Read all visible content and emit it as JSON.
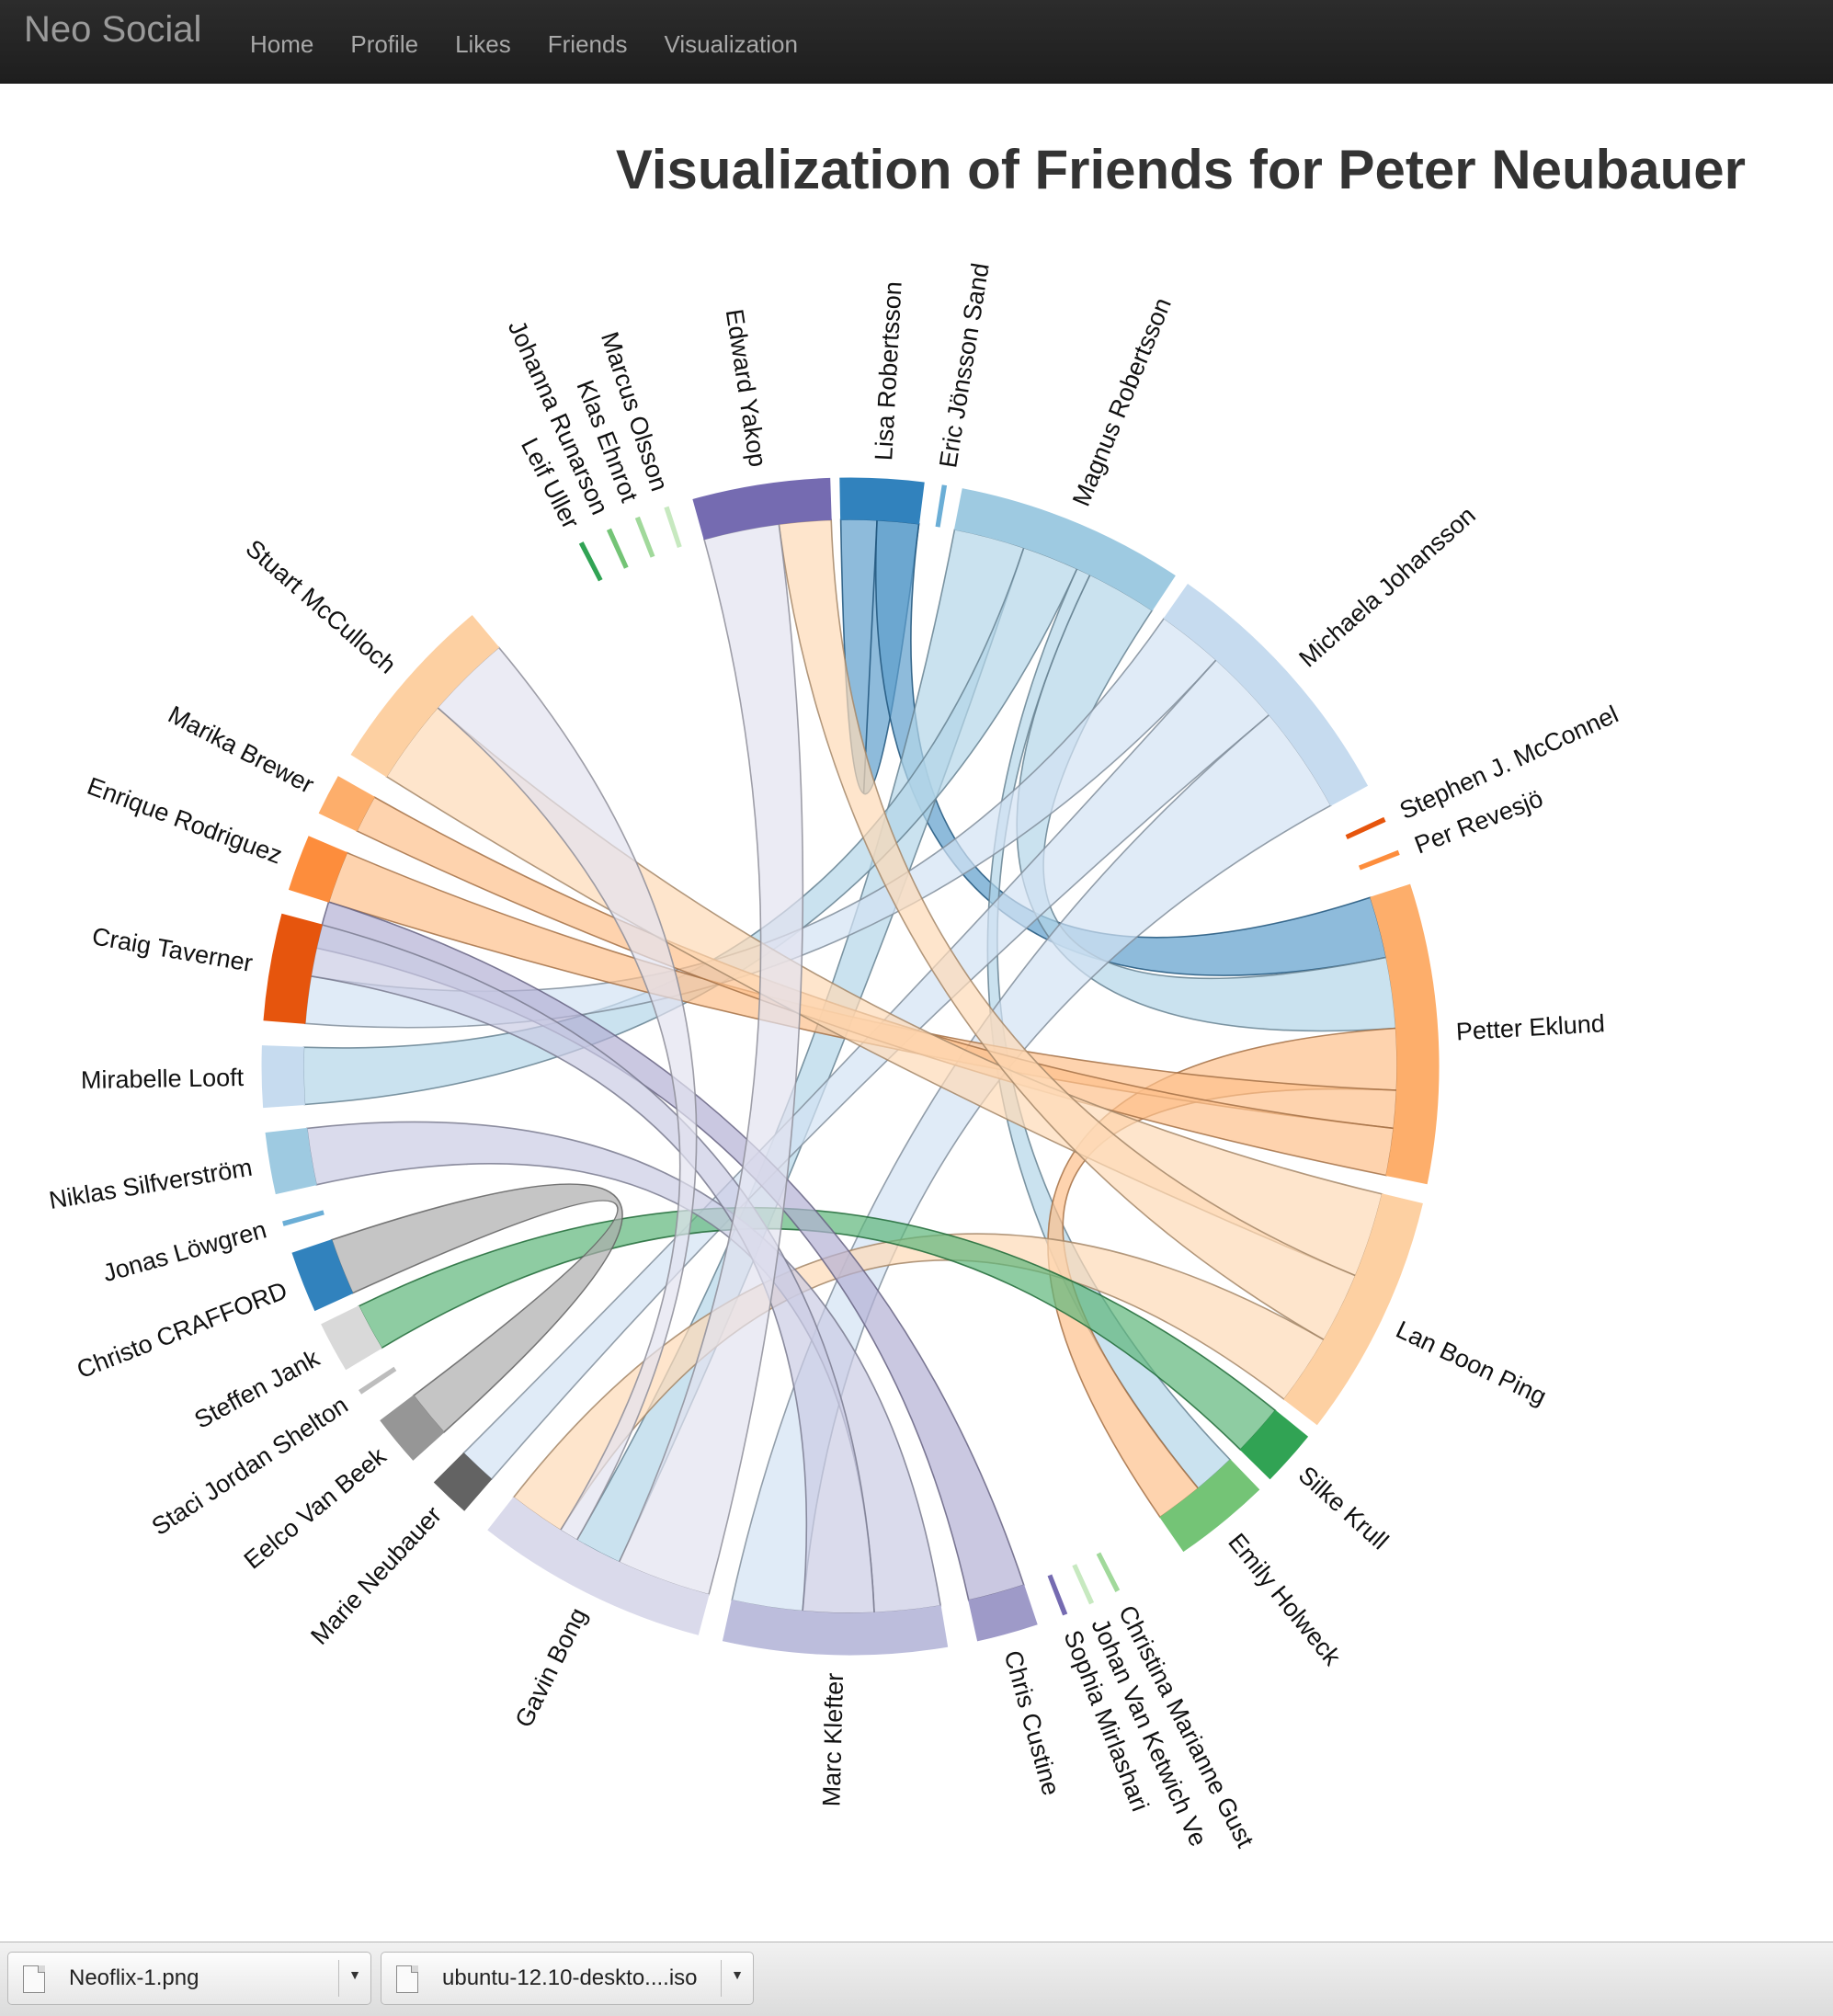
{
  "navbar": {
    "brand": "Neo Social",
    "items": [
      "Home",
      "Profile",
      "Likes",
      "Friends",
      "Visualization"
    ]
  },
  "title": "Visualization of Friends for Peter Neubauer",
  "chart_data": {
    "type": "chord",
    "groups": [
      {
        "name": "Lisa Robertsson",
        "start": -1.0,
        "end": 7.2,
        "color": "#3182bd"
      },
      {
        "name": "Eric Jönsson Sand",
        "start": 9.0,
        "end": 9.4,
        "color": "#6baed6"
      },
      {
        "name": "Magnus Robertsson",
        "start": 11.0,
        "end": 33.5,
        "color": "#9ecae1"
      },
      {
        "name": "Michaela Johansson",
        "start": 35.0,
        "end": 61.5,
        "color": "#c6dbef"
      },
      {
        "name": "Stephen J. McConnel",
        "start": 65.0,
        "end": 65.4,
        "color": "#e6550d"
      },
      {
        "name": "Per Revesjö",
        "start": 68.5,
        "end": 68.9,
        "color": "#fd8d3c"
      },
      {
        "name": "Petter Eklund",
        "start": 72.0,
        "end": 101.5,
        "color": "#fdae6b"
      },
      {
        "name": "Lan Boon Ping",
        "start": 103.5,
        "end": 127.5,
        "color": "#fdd0a2"
      },
      {
        "name": "Silke Krull",
        "start": 129.0,
        "end": 134.5,
        "color": "#31a354"
      },
      {
        "name": "Emily Holweck",
        "start": 136.0,
        "end": 145.5,
        "color": "#74c476"
      },
      {
        "name": "Christina Marianne Gust",
        "start": 152.8,
        "end": 153.2,
        "color": "#a1d99b"
      },
      {
        "name": "Johan Van Ketwich Ve",
        "start": 155.6,
        "end": 156.0,
        "color": "#c7e9c0"
      },
      {
        "name": "Sophia Mirlashari",
        "start": 158.4,
        "end": 158.8,
        "color": "#756bb1"
      },
      {
        "name": "Chris Custine",
        "start": 161.5,
        "end": 167.5,
        "color": "#9e9ac8"
      },
      {
        "name": "Marc Klefter",
        "start": 170.5,
        "end": 192.5,
        "color": "#bcbddc"
      },
      {
        "name": "Gavin Bong",
        "start": 195.0,
        "end": 218.0,
        "color": "#dadaeb"
      },
      {
        "name": "Marie Neubauer",
        "start": 221.0,
        "end": 225.0,
        "color": "#636363"
      },
      {
        "name": "Eelco Van Beek",
        "start": 228.0,
        "end": 233.0,
        "color": "#969696"
      },
      {
        "name": "Staci Jordan Shelton",
        "start": 236.2,
        "end": 236.6,
        "color": "#bdbdbd"
      },
      {
        "name": "Steffen Jank",
        "start": 239.0,
        "end": 244.0,
        "color": "#d9d9d9"
      },
      {
        "name": "Christo CRAFFORD",
        "start": 245.5,
        "end": 251.5,
        "color": "#3182bd"
      },
      {
        "name": "Jonas Löwgren",
        "start": 254.3,
        "end": 254.7,
        "color": "#6baed6"
      },
      {
        "name": "Niklas Silfverström",
        "start": 257.5,
        "end": 263.5,
        "color": "#9ecae1"
      },
      {
        "name": "Mirabelle Looft",
        "start": 266.0,
        "end": 272.0,
        "color": "#c6dbef"
      },
      {
        "name": "Craig Taverner",
        "start": 274.5,
        "end": 285.0,
        "color": "#e6550d"
      },
      {
        "name": "Enrique Rodriguez",
        "start": 287.5,
        "end": 293.0,
        "color": "#fd8d3c"
      },
      {
        "name": "Marika Brewer",
        "start": 295.5,
        "end": 299.5,
        "color": "#fdae6b"
      },
      {
        "name": "Stuart McCulloch",
        "start": 302.0,
        "end": 320.0,
        "color": "#fdd0a2"
      },
      {
        "name": "Leif Uller",
        "start": 332.6,
        "end": 333.0,
        "color": "#31a354"
      },
      {
        "name": "Johanna Runarson",
        "start": 335.6,
        "end": 336.0,
        "color": "#74c476"
      },
      {
        "name": "Klas Ehnrot",
        "start": 338.6,
        "end": 339.0,
        "color": "#a1d99b"
      },
      {
        "name": "Marcus Olsson",
        "start": 341.6,
        "end": 342.0,
        "color": "#c7e9c0"
      },
      {
        "name": "Edward Yakop",
        "start": 344.5,
        "end": 358.0,
        "color": "#756bb1"
      }
    ],
    "chords": [
      {
        "source": "Lisa Robertsson",
        "target": "Lisa Robertsson",
        "sa": [
          -1.0,
          2.8
        ],
        "ta": [
          2.8,
          7.2
        ],
        "color": "#3182bd"
      },
      {
        "source": "Lisa Robertsson",
        "target": "Petter Eklund",
        "sa": [
          2.8,
          7.2
        ],
        "ta": [
          72.0,
          78.5
        ],
        "color": "#3182bd"
      },
      {
        "source": "Magnus Robertsson",
        "target": "Gavin Bong",
        "sa": [
          11.0,
          18.5
        ],
        "ta": [
          205.0,
          210.0
        ],
        "color": "#9ecae1"
      },
      {
        "source": "Magnus Robertsson",
        "target": "Mirabelle Looft",
        "sa": [
          18.5,
          24.5
        ],
        "ta": [
          266.0,
          272.0
        ],
        "color": "#9ecae1"
      },
      {
        "source": "Magnus Robertsson",
        "target": "Petter Eklund",
        "sa": [
          26.0,
          33.5
        ],
        "ta": [
          78.5,
          86.0
        ],
        "color": "#9ecae1"
      },
      {
        "source": "Magnus Robertsson",
        "target": "Emily Holweck",
        "sa": [
          24.5,
          26.0
        ],
        "ta": [
          136.0,
          140.5
        ],
        "color": "#9ecae1"
      },
      {
        "source": "Michaela Johansson",
        "target": "Craig Taverner",
        "sa": [
          35.0,
          42.0
        ],
        "ta": [
          274.5,
          279.5
        ],
        "color": "#c6dbef"
      },
      {
        "source": "Michaela Johansson",
        "target": "Marie Neubauer",
        "sa": [
          42.0,
          50.0
        ],
        "ta": [
          221.0,
          225.0
        ],
        "color": "#c6dbef"
      },
      {
        "source": "Michaela Johansson",
        "target": "Marc Klefter",
        "sa": [
          50.0,
          61.5
        ],
        "ta": [
          185.0,
          192.5
        ],
        "color": "#c6dbef"
      },
      {
        "source": "Petter Eklund",
        "target": "Emily Holweck",
        "sa": [
          86.0,
          92.5
        ],
        "ta": [
          140.5,
          145.5
        ],
        "color": "#fdae6b"
      },
      {
        "source": "Petter Eklund",
        "target": "Enrique Rodriguez",
        "sa": [
          92.5,
          96.5
        ],
        "ta": [
          287.5,
          293.0
        ],
        "color": "#fdae6b"
      },
      {
        "source": "Petter Eklund",
        "target": "Marika Brewer",
        "sa": [
          96.5,
          101.5
        ],
        "ta": [
          295.5,
          299.5
        ],
        "color": "#fdae6b"
      },
      {
        "source": "Lan Boon Ping",
        "target": "Stuart McCulloch",
        "sa": [
          103.5,
          112.5
        ],
        "ta": [
          302.0,
          311.0
        ],
        "color": "#fdd0a2"
      },
      {
        "source": "Lan Boon Ping",
        "target": "Edward Yakop",
        "sa": [
          112.5,
          120.0
        ],
        "ta": [
          352.5,
          358.0
        ],
        "color": "#fdd0a2"
      },
      {
        "source": "Lan Boon Ping",
        "target": "Gavin Bong",
        "sa": [
          120.0,
          127.5
        ],
        "ta": [
          212.0,
          218.0
        ],
        "color": "#fdd0a2"
      },
      {
        "source": "Silke Krull",
        "target": "Steffen Jank",
        "sa": [
          129.0,
          134.5
        ],
        "ta": [
          239.0,
          244.0
        ],
        "color": "#31a354"
      },
      {
        "source": "Chris Custine",
        "target": "Enrique Rodriguez",
        "sa": [
          161.5,
          167.5
        ],
        "ta": [
          282.5,
          287.5
        ],
        "color": "#9e9ac8"
      },
      {
        "source": "Marc Klefter",
        "target": "Niklas Silfverström",
        "sa": [
          170.5,
          177.5
        ],
        "ta": [
          257.5,
          263.5
        ],
        "color": "#bcbddc"
      },
      {
        "source": "Marc Klefter",
        "target": "Craig Taverner",
        "sa": [
          177.5,
          185.0
        ],
        "ta": [
          279.5,
          285.0
        ],
        "color": "#bcbddc"
      },
      {
        "source": "Gavin Bong",
        "target": "Edward Yakop",
        "sa": [
          195.0,
          205.0
        ],
        "ta": [
          344.5,
          352.5
        ],
        "color": "#dadaeb"
      },
      {
        "source": "Gavin Bong",
        "target": "Stuart McCulloch",
        "sa": [
          210.0,
          212.0
        ],
        "ta": [
          311.0,
          320.0
        ],
        "color": "#dadaeb"
      },
      {
        "source": "Eelco Van Beek",
        "target": "Christo CRAFFORD",
        "sa": [
          228.0,
          233.0
        ],
        "ta": [
          245.5,
          251.5
        ],
        "color": "#969696"
      }
    ]
  },
  "downloads": [
    {
      "name": "Neoflix-1.png"
    },
    {
      "name": "ubuntu-12.10-deskto....iso"
    }
  ]
}
